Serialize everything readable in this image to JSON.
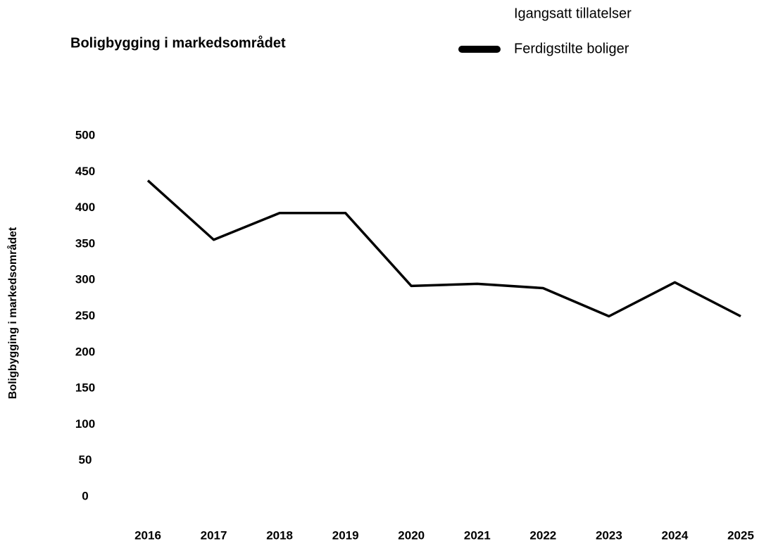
{
  "chart_data": {
    "type": "line",
    "title": "Boligbygging i markedsområdet",
    "y_label": "Boligbygging i markedsområdet",
    "categories": [
      "2016",
      "2017",
      "2018",
      "2019",
      "2020",
      "2021",
      "2022",
      "2023",
      "2024",
      "2025"
    ],
    "series": [
      {
        "name": "Igangsatt tillatelser",
        "color": "#ffffff",
        "values": [
          null,
          null,
          null,
          null,
          null,
          null,
          null,
          null,
          null,
          null
        ]
      },
      {
        "name": "Ferdigstilte boliger",
        "color": "#000000",
        "values": [
          438,
          356,
          393,
          393,
          292,
          295,
          289,
          250,
          297,
          250
        ]
      }
    ],
    "ylim": [
      0,
      500
    ],
    "yticks": [
      0,
      50,
      100,
      150,
      200,
      250,
      300,
      350,
      400,
      450,
      500
    ],
    "grid": false,
    "legend": "top-right"
  }
}
